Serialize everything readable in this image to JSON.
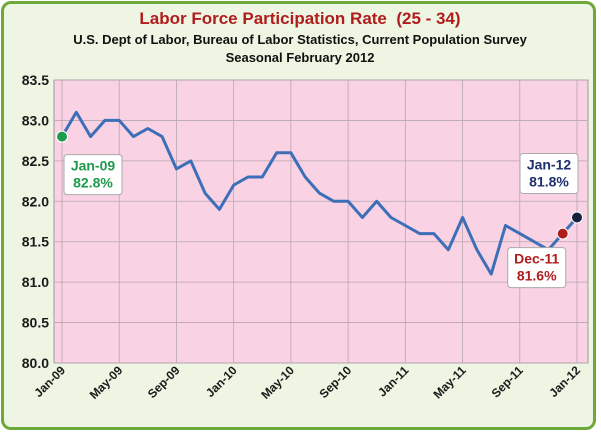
{
  "chart_data": {
    "type": "line",
    "title": "Labor Force Participation Rate  (25 - 34)",
    "subtitle": "U.S. Dept of Labor, Bureau of Labor Statistics, Current Population Survey",
    "subtitle2": "Seasonal February 2012",
    "xlabel": "",
    "ylabel": "",
    "ylim": [
      80.0,
      83.5
    ],
    "y_ticks": [
      "80.0",
      "80.5",
      "81.0",
      "81.5",
      "82.0",
      "82.5",
      "83.0",
      "83.5"
    ],
    "x_tick_labels": [
      "Jan-09",
      "May-09",
      "Sep-09",
      "Jan-10",
      "May-10",
      "Sep-10",
      "Jan-11",
      "May-11",
      "Sep-11",
      "Jan-12"
    ],
    "grid": true,
    "colors": {
      "plot_background": "#f9d2e3",
      "line": "#3d6fb8",
      "frame_border": "#6fa83a",
      "title": "#b01d1d"
    },
    "series": [
      {
        "x": [
          "Jan-09",
          "Feb-09",
          "Mar-09",
          "Apr-09",
          "May-09",
          "Jun-09",
          "Jul-09",
          "Aug-09",
          "Sep-09",
          "Oct-09",
          "Nov-09",
          "Dec-09",
          "Jan-10",
          "Feb-10",
          "Mar-10",
          "Apr-10",
          "May-10",
          "Jun-10",
          "Jul-10",
          "Aug-10",
          "Sep-10",
          "Oct-10",
          "Nov-10",
          "Dec-10",
          "Jan-11",
          "Feb-11",
          "Mar-11",
          "Apr-11",
          "May-11",
          "Jun-11",
          "Jul-11",
          "Aug-11",
          "Sep-11",
          "Oct-11",
          "Nov-11",
          "Dec-11",
          "Jan-12"
        ],
        "values": [
          82.8,
          83.1,
          82.8,
          83.0,
          83.0,
          82.8,
          82.9,
          82.8,
          82.4,
          82.5,
          82.1,
          81.9,
          82.2,
          82.3,
          82.3,
          82.6,
          82.6,
          82.3,
          82.1,
          82.0,
          82.0,
          81.8,
          82.0,
          81.8,
          81.7,
          81.6,
          81.6,
          81.4,
          81.8,
          81.4,
          81.1,
          81.7,
          81.6,
          81.5,
          81.4,
          81.6,
          81.8
        ]
      }
    ],
    "annotations": [
      {
        "lines": [
          "Jan-09",
          "82.8%"
        ],
        "index": 0,
        "color": "#1e9a4b",
        "marker_color": "#1e9a4b"
      },
      {
        "lines": [
          "Jan-12",
          "81.8%"
        ],
        "index": 36,
        "color": "#1f2f6e",
        "marker_color": "#15213f"
      },
      {
        "lines": [
          "Dec-11",
          "81.6%"
        ],
        "index": 35,
        "color": "#b01d1d",
        "marker_color": "#b01d1d"
      }
    ]
  }
}
